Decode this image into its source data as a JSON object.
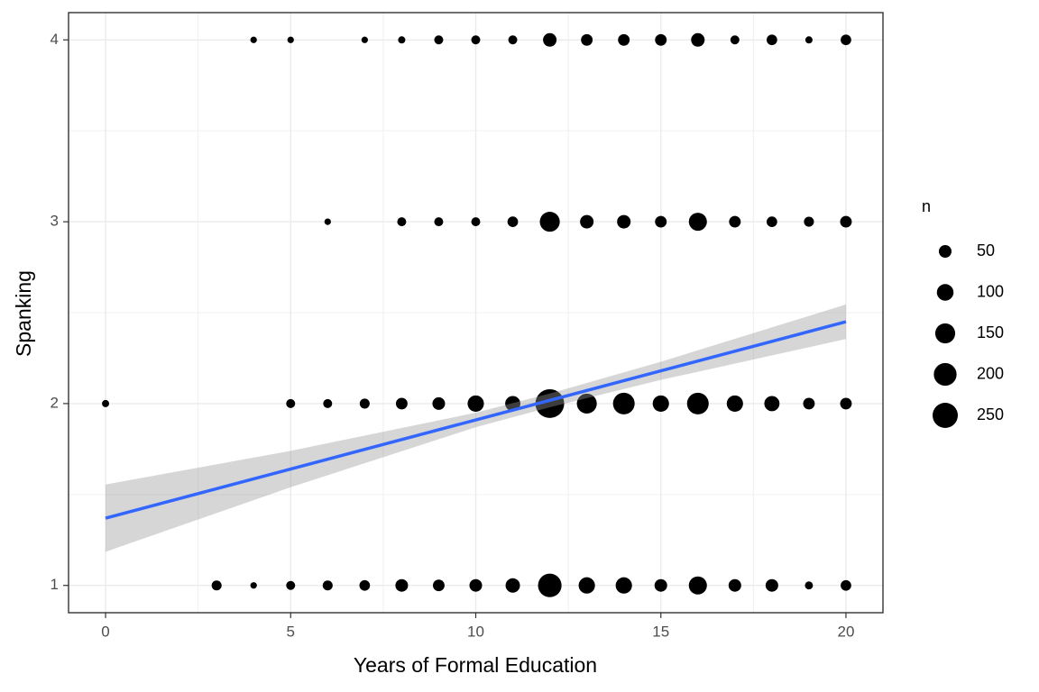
{
  "chart_data": {
    "type": "scatter",
    "x_label": "Years of Formal Education",
    "y_label": "Spanking",
    "xlim": [
      -1,
      21
    ],
    "ylim": [
      0.85,
      4.15
    ],
    "xticks": [
      0,
      5,
      10,
      15,
      20
    ],
    "yticks": [
      1,
      2,
      3,
      4
    ],
    "xminor": [
      2.5,
      7.5,
      12.5,
      17.5
    ],
    "yminor": [
      1.5,
      2.5,
      3.5
    ],
    "grid": true,
    "color": "#000000",
    "points": {
      "x": [
        4,
        5,
        7,
        8,
        9,
        10,
        11,
        12,
        13,
        14,
        15,
        16,
        17,
        18,
        19,
        20,
        6,
        8,
        9,
        10,
        11,
        12,
        13,
        14,
        15,
        16,
        17,
        18,
        19,
        20,
        0,
        5,
        6,
        7,
        8,
        9,
        10,
        11,
        12,
        13,
        14,
        15,
        16,
        17,
        18,
        19,
        20,
        3,
        4,
        5,
        6,
        7,
        8,
        9,
        10,
        11,
        12,
        13,
        14,
        15,
        16,
        17,
        18,
        19,
        20
      ],
      "y": [
        4,
        4,
        4,
        4,
        4,
        4,
        4,
        4,
        4,
        4,
        4,
        4,
        4,
        4,
        4,
        4,
        3,
        3,
        3,
        3,
        3,
        3,
        3,
        3,
        3,
        3,
        3,
        3,
        3,
        3,
        2,
        2,
        2,
        2,
        2,
        2,
        2,
        2,
        2,
        2,
        2,
        2,
        2,
        2,
        2,
        2,
        2,
        1,
        1,
        1,
        1,
        1,
        1,
        1,
        1,
        1,
        1,
        1,
        1,
        1,
        1,
        1,
        1,
        1,
        1
      ],
      "size": [
        1,
        1,
        1,
        5,
        17,
        17,
        17,
        60,
        40,
        40,
        40,
        60,
        17,
        30,
        5,
        30,
        1,
        17,
        17,
        17,
        30,
        150,
        60,
        60,
        40,
        120,
        40,
        30,
        25,
        40,
        5,
        17,
        17,
        25,
        40,
        50,
        95,
        80,
        330,
        150,
        180,
        95,
        180,
        95,
        80,
        40,
        40,
        25,
        1,
        17,
        25,
        30,
        50,
        40,
        50,
        70,
        215,
        95,
        95,
        50,
        120,
        50,
        50,
        10,
        30
      ]
    },
    "fit": {
      "color": "#3366FF",
      "band_color": "#999999",
      "x": [
        0,
        5,
        10,
        12,
        15,
        20
      ],
      "y": [
        1.37,
        1.64,
        1.91,
        2.018,
        2.18,
        2.45
      ],
      "lower": [
        1.185,
        1.54,
        1.87,
        1.98,
        2.13,
        2.355
      ],
      "upper": [
        1.555,
        1.74,
        1.95,
        2.055,
        2.23,
        2.545
      ]
    },
    "size_legend": {
      "title": "n",
      "values": [
        50,
        100,
        150,
        200,
        250
      ]
    }
  }
}
